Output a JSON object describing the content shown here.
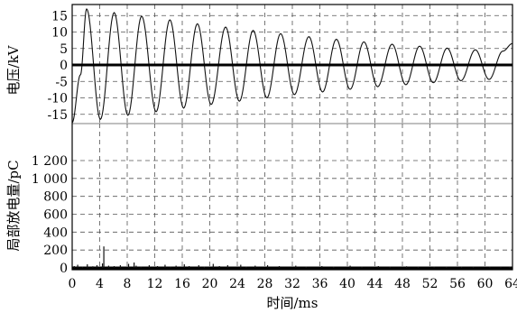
{
  "chart_data": [
    {
      "type": "line",
      "panel": "top",
      "ylabel": "电压/kV",
      "xlim": [
        0,
        64
      ],
      "ylim": [
        -19,
        18
      ],
      "yticks": [
        15,
        10,
        5,
        0,
        -5,
        -10,
        -15
      ],
      "grid": true,
      "series": [
        {
          "points": [
            [
              0,
              -17.5
            ],
            [
              1.2,
              -3
            ],
            [
              2.1,
              17
            ],
            [
              4.1,
              -16.5
            ],
            [
              6.1,
              15.9
            ],
            [
              8.1,
              -15.3
            ],
            [
              10.1,
              14.8
            ],
            [
              12.2,
              -14.2
            ],
            [
              14.2,
              13.7
            ],
            [
              16.2,
              -13.1
            ],
            [
              18.2,
              12.5
            ],
            [
              20.2,
              -12
            ],
            [
              22.3,
              11.5
            ],
            [
              24.3,
              -11
            ],
            [
              26.3,
              10.5
            ],
            [
              28.3,
              -10
            ],
            [
              30.3,
              9.5
            ],
            [
              32.3,
              -9
            ],
            [
              34.4,
              8.6
            ],
            [
              36.4,
              -8.2
            ],
            [
              38.4,
              7.8
            ],
            [
              40.4,
              -7.4
            ],
            [
              42.4,
              7
            ],
            [
              44.4,
              -6.6
            ],
            [
              46.5,
              6.3
            ],
            [
              48.5,
              -6
            ],
            [
              50.5,
              5.7
            ],
            [
              52.5,
              -5.4
            ],
            [
              54.5,
              5.1
            ],
            [
              56.5,
              -4.8
            ],
            [
              58.6,
              4.6
            ],
            [
              60.6,
              -4.4
            ],
            [
              62.6,
              4.2
            ],
            [
              64,
              6.5
            ]
          ]
        }
      ]
    },
    {
      "type": "bar",
      "panel": "bottom",
      "xlabel": "时间/ms",
      "ylabel": "局部放电量/pC",
      "xlim": [
        0,
        64
      ],
      "ylim": [
        0,
        1350
      ],
      "xticks": [
        0,
        4,
        8,
        12,
        16,
        20,
        24,
        28,
        32,
        36,
        40,
        44,
        48,
        52,
        56,
        60,
        64
      ],
      "yticks": [
        0,
        200,
        400,
        600,
        800,
        "1 000",
        "1 200"
      ],
      "grid": true,
      "series": [
        {
          "pulses": [
            [
              0.3,
              20
            ],
            [
              0.8,
              35
            ],
            [
              1.5,
              15
            ],
            [
              2.2,
              40
            ],
            [
              3.0,
              18
            ],
            [
              3.6,
              30
            ],
            [
              4.4,
              50
            ],
            [
              4.6,
              240
            ],
            [
              5.3,
              25
            ],
            [
              6.1,
              20
            ],
            [
              7.0,
              30
            ],
            [
              8.2,
              45
            ],
            [
              9.0,
              60
            ],
            [
              9.3,
              25
            ],
            [
              10.0,
              15
            ],
            [
              11.2,
              30
            ],
            [
              12.4,
              20
            ],
            [
              13.5,
              35
            ],
            [
              14.3,
              15
            ],
            [
              15.1,
              25
            ],
            [
              16.3,
              40
            ],
            [
              17.0,
              20
            ],
            [
              18.4,
              30
            ],
            [
              19.2,
              15
            ],
            [
              20.5,
              45
            ],
            [
              21.4,
              20
            ],
            [
              22.6,
              30
            ],
            [
              24.5,
              35
            ],
            [
              25.3,
              15
            ],
            [
              26.6,
              25
            ],
            [
              28.4,
              30
            ],
            [
              30.1,
              20
            ],
            [
              32.5,
              25
            ],
            [
              34.0,
              15
            ],
            [
              36.3,
              20
            ],
            [
              38.0,
              15
            ],
            [
              40.4,
              25
            ],
            [
              42.1,
              15
            ],
            [
              44.5,
              20
            ],
            [
              46.2,
              15
            ],
            [
              48.6,
              18
            ],
            [
              50.3,
              12
            ],
            [
              52.6,
              15
            ],
            [
              54.4,
              12
            ],
            [
              56.6,
              15
            ],
            [
              58.3,
              12
            ],
            [
              60.7,
              14
            ],
            [
              62.3,
              10
            ],
            [
              63.6,
              12
            ]
          ]
        }
      ]
    }
  ]
}
